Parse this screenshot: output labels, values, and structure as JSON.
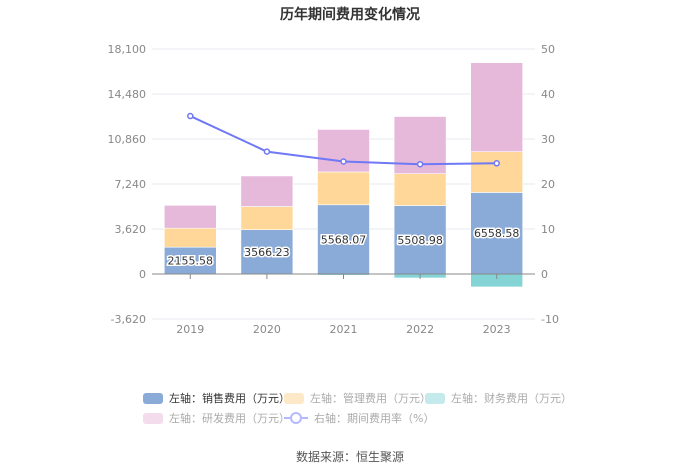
{
  "chart_data": {
    "type": "bar",
    "title": "历年期间费用变化情况",
    "categories": [
      "2019",
      "2020",
      "2021",
      "2022",
      "2023"
    ],
    "left_axis": {
      "ylim": [
        -3620,
        18100
      ],
      "ticks": [
        "-3,620",
        "0",
        "3,620",
        "7,240",
        "10,860",
        "14,480",
        "18,100"
      ],
      "tick_values": [
        -3620,
        0,
        3620,
        7240,
        10860,
        14480,
        18100
      ]
    },
    "right_axis": {
      "ylim": [
        -10,
        50
      ],
      "ticks": [
        "-10",
        "0",
        "10",
        "20",
        "30",
        "40",
        "50"
      ],
      "tick_values": [
        -10,
        0,
        10,
        20,
        30,
        40,
        50
      ]
    },
    "series": [
      {
        "name": "左轴：销售费用（万元）",
        "type": "bar",
        "color": "#8aabd8",
        "values": [
          2155.58,
          3566.23,
          5568.07,
          5508.98,
          6558.58
        ],
        "labels": [
          "2155.58",
          "3566.23",
          "5568.07",
          "5508.98",
          "6558.58"
        ]
      },
      {
        "name": "左轴：管理费用（万元）",
        "type": "bar",
        "color": "#ffd899",
        "values": [
          1530,
          1860,
          2640,
          2560,
          3280
        ]
      },
      {
        "name": "左轴：财务费用（万元）",
        "type": "bar",
        "color": "#84d4d6",
        "values": [
          -10,
          -60,
          -100,
          -320,
          -1040
        ]
      },
      {
        "name": "左轴：研发费用（万元）",
        "type": "bar",
        "color": "#e6b8da",
        "values": [
          1840,
          2460,
          3420,
          4600,
          7160
        ]
      },
      {
        "name": "右轴：期间费用率（%）",
        "type": "line",
        "color": "#6f78f5",
        "values": [
          35.1,
          27.2,
          25.0,
          24.4,
          24.6
        ]
      }
    ],
    "legend_position": "bottom",
    "grid": true
  },
  "source": "数据来源：恒生聚源"
}
